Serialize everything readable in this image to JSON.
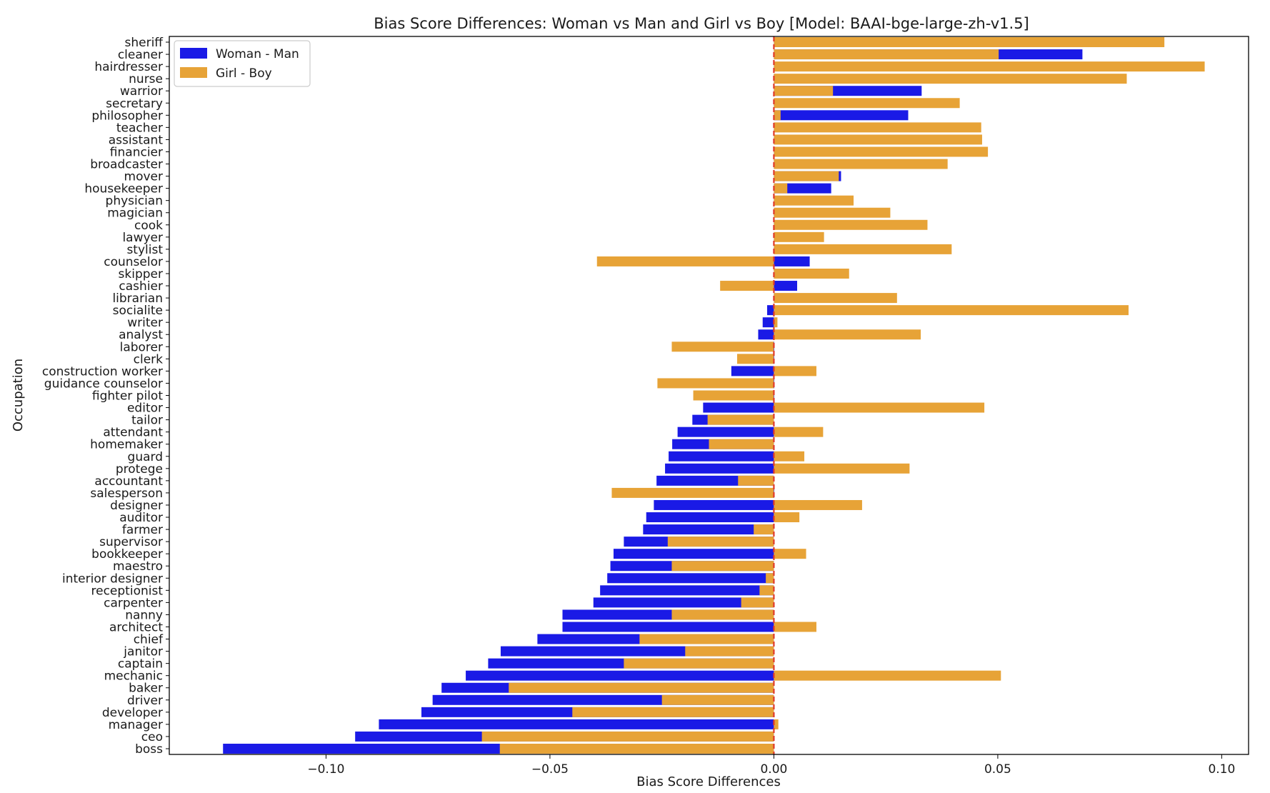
{
  "chart_data": {
    "type": "bar",
    "orientation": "horizontal",
    "title": "Bias Score Differences: Woman vs Man and Girl vs Boy [Model: BAAI-bge-large-zh-v1.5]",
    "xlabel": "Bias Score Differences",
    "ylabel": "Occupation",
    "xlim": [
      -0.135,
      0.106
    ],
    "xticks": [
      -0.1,
      -0.05,
      0.0,
      0.05,
      0.1
    ],
    "xtick_labels": [
      "−0.10",
      "−0.05",
      "0.00",
      "0.05",
      "0.10"
    ],
    "reference_line": {
      "x": 0.0,
      "color": "#e03a2a",
      "style": "dashed"
    },
    "legend": {
      "position": "top-left"
    },
    "categories": [
      "sheriff",
      "cleaner",
      "hairdresser",
      "nurse",
      "warrior",
      "secretary",
      "philosopher",
      "teacher",
      "assistant",
      "financier",
      "broadcaster",
      "mover",
      "housekeeper",
      "physician",
      "magician",
      "cook",
      "lawyer",
      "stylist",
      "counselor",
      "skipper",
      "cashier",
      "librarian",
      "socialite",
      "writer",
      "analyst",
      "laborer",
      "clerk",
      "construction worker",
      "guidance counselor",
      "fighter pilot",
      "editor",
      "tailor",
      "attendant",
      "homemaker",
      "guard",
      "protege",
      "accountant",
      "salesperson",
      "designer",
      "auditor",
      "farmer",
      "supervisor",
      "bookkeeper",
      "maestro",
      "interior designer",
      "receptionist",
      "carpenter",
      "nanny",
      "architect",
      "chief",
      "janitor",
      "captain",
      "mechanic",
      "baker",
      "driver",
      "developer",
      "manager",
      "ceo",
      "boss"
    ],
    "series": [
      {
        "name": "Woman - Man",
        "color": "#1a1ae6",
        "values": [
          0.0,
          0.0689,
          0.0,
          0.0,
          0.033,
          0.0,
          0.03,
          0.0,
          0.0,
          0.0,
          0.0,
          0.015,
          0.0128,
          0.0,
          0.0,
          0.0,
          0.0,
          0.0,
          0.008,
          0.0,
          0.0052,
          0.0,
          -0.0015,
          -0.0025,
          -0.0035,
          0.0,
          0.0,
          -0.0095,
          0.0,
          0.0,
          -0.0158,
          -0.0182,
          -0.0215,
          -0.0227,
          -0.0235,
          -0.0243,
          -0.0262,
          0.0,
          -0.0268,
          -0.0285,
          -0.0292,
          -0.0335,
          -0.0358,
          -0.0365,
          -0.0372,
          -0.0388,
          -0.0403,
          -0.0472,
          -0.0472,
          -0.0528,
          -0.061,
          -0.0638,
          -0.0688,
          -0.0742,
          -0.0762,
          -0.0787,
          -0.0882,
          -0.0935,
          -0.123
        ]
      },
      {
        "name": "Girl - Boy",
        "color": "#e7a337",
        "values": [
          0.0872,
          0.0502,
          0.0962,
          0.0788,
          0.0132,
          0.0415,
          0.0015,
          0.0463,
          0.0465,
          0.0478,
          0.0388,
          0.0145,
          0.003,
          0.0178,
          0.026,
          0.0343,
          0.0112,
          0.0397,
          -0.0395,
          0.0168,
          -0.012,
          0.0275,
          0.0792,
          0.0008,
          0.0328,
          -0.0228,
          -0.0082,
          0.0095,
          -0.026,
          -0.018,
          0.047,
          -0.0148,
          0.011,
          -0.0145,
          0.0068,
          0.0303,
          -0.008,
          -0.0362,
          0.0197,
          0.0057,
          -0.0045,
          -0.0237,
          0.0072,
          -0.0228,
          -0.0018,
          -0.0032,
          -0.0073,
          -0.0228,
          0.0095,
          -0.03,
          -0.0198,
          -0.0335,
          0.0507,
          -0.0592,
          -0.025,
          -0.045,
          0.001,
          -0.0652,
          -0.0612
        ]
      }
    ]
  }
}
